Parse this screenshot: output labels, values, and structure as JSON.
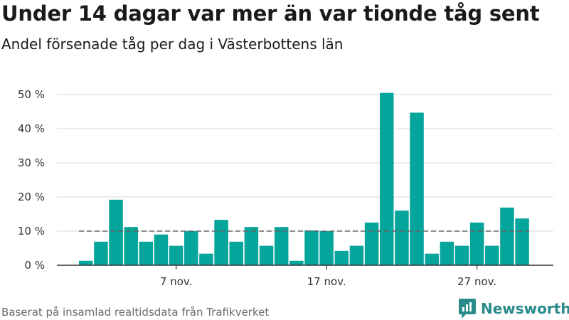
{
  "title": "Under 14 dagar var mer än var tionde tåg sent",
  "subtitle": "Andel försenade tåg per dag i Västerbottens län",
  "footer": "Baserat på insamlad realtidsdata från Trafikverket",
  "logo": {
    "text": "Newsworthy",
    "icon": "newsworthy-logo-icon",
    "color": "#2a8b8b"
  },
  "colors": {
    "bar": "#05a59b",
    "grid": "#d9d9d9",
    "reference": "#666666",
    "axis": "#333333"
  },
  "chart_data": {
    "type": "bar",
    "title": "Under 14 dagar var mer än var tionde tåg sent",
    "subtitle": "Andel försenade tåg per dag i Västerbottens län",
    "xlabel": "",
    "ylabel": "",
    "x": [
      "1 nov.",
      "2 nov.",
      "3 nov.",
      "4 nov.",
      "5 nov.",
      "6 nov.",
      "7 nov.",
      "8 nov.",
      "9 nov.",
      "10 nov.",
      "11 nov.",
      "12 nov.",
      "13 nov.",
      "14 nov.",
      "15 nov.",
      "16 nov.",
      "17 nov.",
      "18 nov.",
      "19 nov.",
      "20 nov.",
      "21 nov.",
      "22 nov.",
      "23 nov.",
      "24 nov.",
      "25 nov.",
      "26 nov.",
      "27 nov.",
      "28 nov.",
      "29 nov.",
      "30 nov."
    ],
    "values": [
      1.3,
      6.9,
      19.2,
      11.2,
      6.9,
      9.0,
      5.7,
      10.0,
      3.4,
      13.3,
      6.9,
      11.2,
      5.7,
      11.2,
      1.3,
      10.2,
      10.0,
      4.2,
      5.7,
      12.5,
      50.5,
      16.0,
      44.7,
      3.4,
      6.9,
      5.7,
      12.5,
      5.7,
      16.9,
      13.7
    ],
    "reference_line": {
      "value": 10,
      "style": "dashed"
    },
    "ylim": [
      0,
      50
    ],
    "yticks": [
      0,
      10,
      20,
      30,
      40,
      50
    ],
    "ytick_labels": [
      "0 %",
      "10 %",
      "20 %",
      "30 %",
      "40 %",
      "50 %"
    ],
    "xticks": [
      "7 nov.",
      "17 nov.",
      "27 nov."
    ],
    "grid": true,
    "legend": "none"
  }
}
